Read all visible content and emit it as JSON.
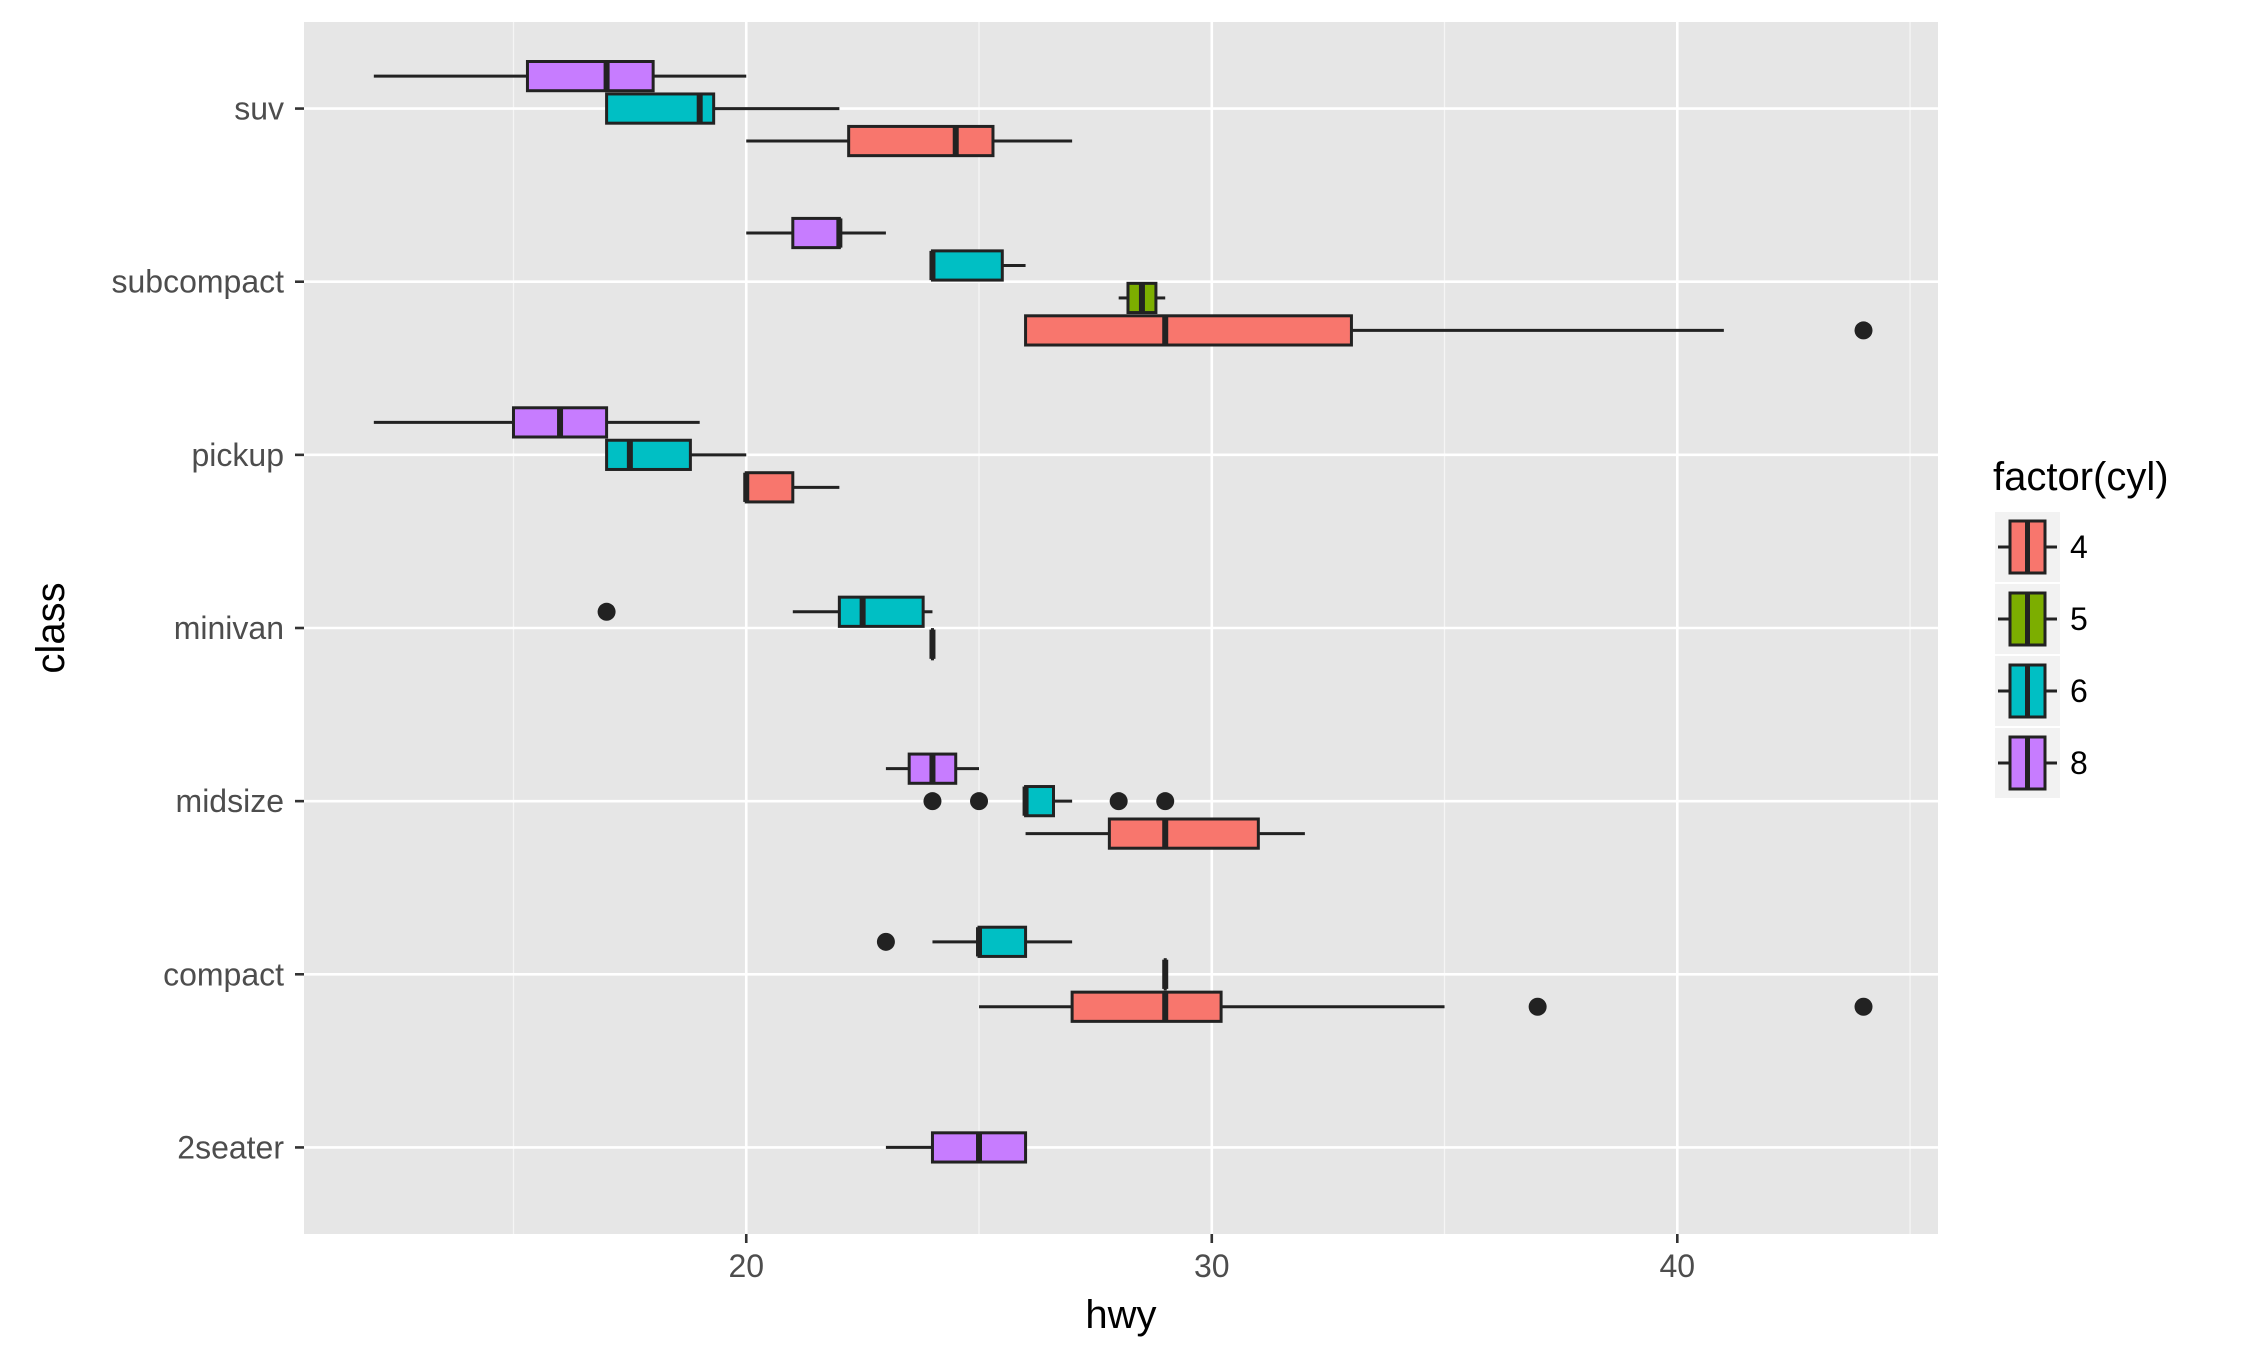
{
  "chart_data": {
    "type": "boxplot",
    "orientation": "horizontal",
    "xlabel": "hwy",
    "ylabel": "class",
    "xlim": [
      10.5,
      45.6
    ],
    "x_ticks": [
      20,
      30,
      40
    ],
    "categories": [
      "2seater",
      "compact",
      "midsize",
      "minivan",
      "pickup",
      "subcompact",
      "suv"
    ],
    "legend": {
      "title": "factor(cyl)",
      "position": "right",
      "entries": [
        {
          "label": "4",
          "color": "#F8766D"
        },
        {
          "label": "5",
          "color": "#7CAE00"
        },
        {
          "label": "6",
          "color": "#00BFC4"
        },
        {
          "label": "8",
          "color": "#C77CFF"
        }
      ]
    },
    "grid": true,
    "boxes": [
      {
        "class": "2seater",
        "cyl": "8",
        "min": 23,
        "q1": 24,
        "median": 25,
        "q3": 26,
        "max": 26,
        "outliers": []
      },
      {
        "class": "compact",
        "cyl": "4",
        "min": 25,
        "q1": 27,
        "median": 29,
        "q3": 30.2,
        "max": 35,
        "outliers": [
          37,
          44
        ]
      },
      {
        "class": "compact",
        "cyl": "5",
        "min": 29,
        "q1": 29,
        "median": 29,
        "q3": 29,
        "max": 29,
        "outliers": []
      },
      {
        "class": "compact",
        "cyl": "6",
        "min": 24,
        "q1": 25,
        "median": 25,
        "q3": 26,
        "max": 27,
        "outliers": [
          23
        ]
      },
      {
        "class": "midsize",
        "cyl": "4",
        "min": 26,
        "q1": 27.8,
        "median": 29,
        "q3": 31,
        "max": 32,
        "outliers": []
      },
      {
        "class": "midsize",
        "cyl": "6",
        "min": 26,
        "q1": 26,
        "median": 26,
        "q3": 26.6,
        "max": 27,
        "outliers": [
          24,
          25,
          28,
          29
        ]
      },
      {
        "class": "midsize",
        "cyl": "8",
        "min": 23,
        "q1": 23.5,
        "median": 24,
        "q3": 24.5,
        "max": 25,
        "outliers": []
      },
      {
        "class": "minivan",
        "cyl": "4",
        "min": 24,
        "q1": 24,
        "median": 24,
        "q3": 24,
        "max": 24,
        "outliers": []
      },
      {
        "class": "minivan",
        "cyl": "6",
        "min": 21,
        "q1": 22,
        "median": 22.5,
        "q3": 23.8,
        "max": 24,
        "outliers": [
          17
        ]
      },
      {
        "class": "pickup",
        "cyl": "4",
        "min": 20,
        "q1": 20,
        "median": 20,
        "q3": 21,
        "max": 22,
        "outliers": []
      },
      {
        "class": "pickup",
        "cyl": "6",
        "min": 17,
        "q1": 17,
        "median": 17.5,
        "q3": 18.8,
        "max": 20,
        "outliers": []
      },
      {
        "class": "pickup",
        "cyl": "8",
        "min": 12,
        "q1": 15,
        "median": 16,
        "q3": 17,
        "max": 19,
        "outliers": []
      },
      {
        "class": "subcompact",
        "cyl": "4",
        "min": 26,
        "q1": 26,
        "median": 29,
        "q3": 33,
        "max": 41,
        "outliers": [
          44
        ]
      },
      {
        "class": "subcompact",
        "cyl": "5",
        "min": 28,
        "q1": 28.2,
        "median": 28.5,
        "q3": 28.8,
        "max": 29,
        "outliers": []
      },
      {
        "class": "subcompact",
        "cyl": "6",
        "min": 24,
        "q1": 24,
        "median": 24,
        "q3": 25.5,
        "max": 26,
        "outliers": []
      },
      {
        "class": "subcompact",
        "cyl": "8",
        "min": 20,
        "q1": 21,
        "median": 22,
        "q3": 22,
        "max": 23,
        "outliers": []
      },
      {
        "class": "suv",
        "cyl": "4",
        "min": 20,
        "q1": 22.2,
        "median": 24.5,
        "q3": 25.3,
        "max": 27,
        "outliers": []
      },
      {
        "class": "suv",
        "cyl": "6",
        "min": 17,
        "q1": 17,
        "median": 19,
        "q3": 19.3,
        "max": 22,
        "outliers": []
      },
      {
        "class": "suv",
        "cyl": "8",
        "min": 12,
        "q1": 15.3,
        "median": 17,
        "q3": 18,
        "max": 20,
        "outliers": []
      }
    ]
  }
}
